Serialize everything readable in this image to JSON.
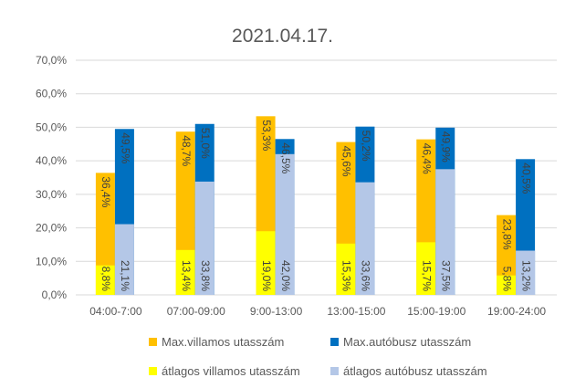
{
  "chart_data": {
    "type": "bar",
    "title": "2021.04.17.",
    "xlabel": "",
    "ylabel": "",
    "ylim": [
      0,
      70
    ],
    "yticks": [
      "0,0%",
      "10,0%",
      "20,0%",
      "30,0%",
      "40,0%",
      "50,0%",
      "60,0%",
      "70,0%"
    ],
    "grid": true,
    "legend_placement": "bottom",
    "categories": [
      "04:00-7:00",
      "07:00-09:00",
      "9:00-13:00",
      "13:00-15:00",
      "15:00-19:00",
      "19:00-24:00"
    ],
    "series": [
      {
        "name": "Max.villamos utasszám",
        "color": "#FFC000",
        "values": [
          36.4,
          48.7,
          53.3,
          45.6,
          46.4,
          23.8
        ],
        "labels": [
          "36,4%",
          "48,7%",
          "53,3%",
          "45,6%",
          "46,4%",
          "23,8%"
        ]
      },
      {
        "name": "Max.autóbusz utasszám",
        "color": "#0070C0",
        "values": [
          49.5,
          51.0,
          46.5,
          50.2,
          49.9,
          40.5
        ],
        "labels": [
          "49,5%",
          "51,0%",
          "46,5%",
          "50,2%",
          "49,9%",
          "40,5%"
        ]
      },
      {
        "name": "átlagos villamos utasszám",
        "color": "#FFFF00",
        "values": [
          8.8,
          13.4,
          19.0,
          15.3,
          15.7,
          5.8
        ],
        "labels": [
          "8,8%",
          "13,4%",
          "19,0%",
          "15,3%",
          "15,7%",
          "5,8%"
        ]
      },
      {
        "name": "átlagos autóbusz utasszám",
        "color": "#B4C7E7",
        "values": [
          21.1,
          33.8,
          42.0,
          33.6,
          37.5,
          13.2
        ],
        "labels": [
          "21,1%",
          "33,8%",
          "42,0%",
          "33,6%",
          "37,5%",
          "13,2%"
        ]
      }
    ]
  }
}
